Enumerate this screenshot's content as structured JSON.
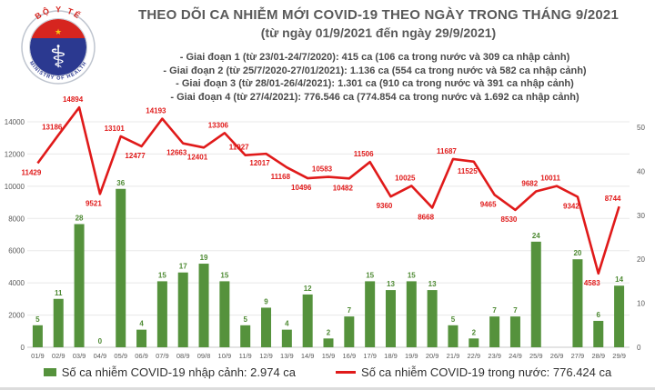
{
  "header": {
    "title": "THEO DÕI CA NHIỄM MỚI COVID-19 THEO NGÀY TRONG THÁNG 9/2021",
    "subtitle": "(từ ngày 01/9/2021 đến ngày 29/9/2021)",
    "bullets": [
      "- Giai đoạn 1 (từ 23/01-24/7/2020): 415 ca (106 ca trong nước và 309 ca nhập cảnh)",
      "- Giai đoạn 2 (từ 25/7/2020-27/01/2021): 1.136 ca (554 ca trong nước và 582 ca nhập cảnh)",
      "- Giai đoạn 3 (từ 28/01-26/4/2021): 1.301 ca (910 ca trong nước và 391 ca nhập cảnh)",
      "- Giai đoạn 4 (từ 27/4/2021): 776.546 ca (774.854 ca trong nước và 1.692 ca nhập cảnh)"
    ],
    "logo": {
      "top_text": "BỘ Y TẾ",
      "bottom_text": "MINISTRY OF HEALTH",
      "star": "★",
      "staff_symbol": "⚕"
    }
  },
  "chart_data": {
    "type": "bar+line",
    "categories": [
      "01/9",
      "02/9",
      "03/9",
      "04/9",
      "05/9",
      "06/9",
      "07/9",
      "08/9",
      "09/8",
      "10/9",
      "11/9",
      "12/9",
      "13/9",
      "14/9",
      "15/9",
      "16/9",
      "17/9",
      "18/9",
      "19/9",
      "20/9",
      "21/9",
      "22/9",
      "23/9",
      "24/9",
      "25/9",
      "26/9",
      "27/9",
      "28/9",
      "29/9"
    ],
    "series": [
      {
        "name": "Số ca nhiễm COVID-19 nhập cảnh",
        "type": "bar",
        "axis": "right",
        "color": "#55923c",
        "values": [
          5,
          11,
          28,
          0,
          36,
          4,
          15,
          17,
          19,
          15,
          5,
          9,
          4,
          12,
          2,
          7,
          15,
          13,
          15,
          13,
          5,
          2,
          7,
          7,
          24,
          0,
          20,
          6,
          14
        ],
        "data_labels": [
          "5",
          "11",
          "28",
          "0",
          "36",
          "4",
          "15",
          "17",
          "19",
          "15",
          "5",
          "9",
          "4",
          "12",
          "2",
          "7",
          "15",
          "13",
          "15",
          "13",
          "5",
          "2",
          "7",
          "7",
          "24",
          "",
          "20",
          "6",
          "14"
        ]
      },
      {
        "name": "Số ca nhiễm COVID-19 trong nước",
        "type": "line",
        "axis": "left",
        "color": "#e01a1a",
        "values": [
          11429,
          13186,
          14894,
          9521,
          13101,
          12477,
          14193,
          12663,
          12401,
          13306,
          11927,
          12017,
          11168,
          10496,
          10583,
          10482,
          11506,
          9360,
          10025,
          8668,
          11687,
          11525,
          9465,
          8530,
          9682,
          10011,
          9342,
          4583,
          8744
        ],
        "data_labels": [
          "11429",
          "13186",
          "14894",
          "9521",
          "13101",
          "12477",
          "14193",
          "12663",
          "12401",
          "13306",
          "11927",
          "12017",
          "11168",
          "10496",
          "10583",
          "10482",
          "11506",
          "9360",
          "10025",
          "8668",
          "11687",
          "11525",
          "9465",
          "8530",
          "9682",
          "10011",
          "9342",
          "4583",
          "8744"
        ],
        "label_sides": [
          "below",
          "above",
          "above",
          "below",
          "above",
          "below",
          "above",
          "below",
          "below",
          "above",
          "above",
          "below",
          "below",
          "below",
          "above",
          "below",
          "above",
          "below",
          "above",
          "below",
          "above",
          "below",
          "below",
          "below",
          "above",
          "above",
          "below",
          "below",
          "above"
        ]
      }
    ],
    "left_axis": {
      "min": 0,
      "max": 16000,
      "ticks": [
        0,
        2000,
        4000,
        6000,
        8000,
        10000,
        12000,
        14000
      ]
    },
    "right_axis": {
      "min": 0,
      "max": 60,
      "ticks": [
        0,
        10,
        20,
        30,
        40,
        50
      ]
    },
    "grid": true,
    "legend_position": "bottom",
    "legend": [
      "Số ca nhiễm COVID-19 nhập cảnh: 2.974 ca",
      "Số ca nhiễm COVID-19 trong nước: 776.424 ca"
    ]
  }
}
